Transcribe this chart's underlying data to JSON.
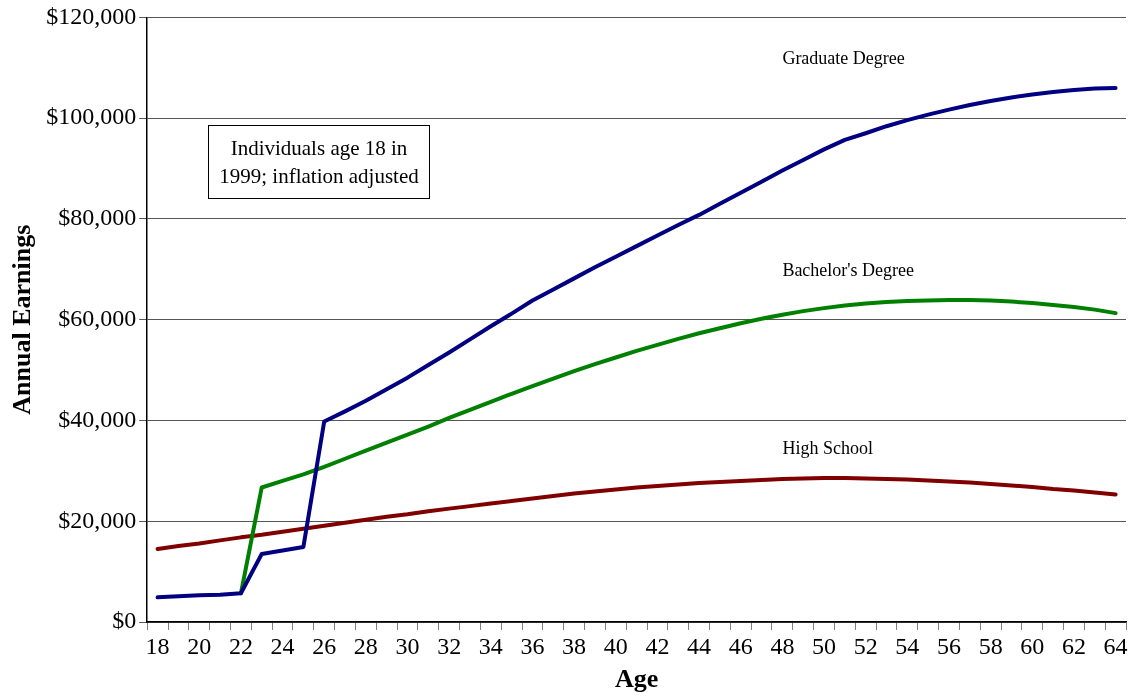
{
  "chart_data": {
    "type": "line",
    "xlabel": "Age",
    "ylabel": "Annual Earnings",
    "categories": [
      "18",
      null,
      "20",
      null,
      "22",
      null,
      "24",
      null,
      "26",
      null,
      "28",
      null,
      "30",
      null,
      "32",
      null,
      "34",
      null,
      "36",
      null,
      "38",
      null,
      "40",
      null,
      "42",
      null,
      "44",
      null,
      "46",
      null,
      "48",
      null,
      "50",
      null,
      "52",
      null,
      "54",
      null,
      "56",
      null,
      "58",
      null,
      "60",
      null,
      "62",
      null,
      "64"
    ],
    "series": [
      {
        "name": "Graduate Degree",
        "color": "#000080",
        "values": [
          4900,
          5100,
          5300,
          5400,
          5700,
          13500,
          14200,
          14900,
          39800,
          41800,
          43900,
          46200,
          48500,
          51000,
          53500,
          56100,
          58700,
          61200,
          63800,
          66000,
          68200,
          70400,
          72500,
          74600,
          76700,
          78800,
          80800,
          83000,
          85200,
          87400,
          89600,
          91700,
          93800,
          95700,
          97000,
          98400,
          99600,
          100700,
          101700,
          102600,
          103400,
          104100,
          104700,
          105200,
          105600,
          105900,
          106000
        ]
      },
      {
        "name": "Bachelor's Degree",
        "color": "#008000",
        "values": [
          null,
          null,
          null,
          null,
          5700,
          26700,
          28000,
          29300,
          30800,
          32400,
          34000,
          35600,
          37200,
          38800,
          40500,
          42100,
          43700,
          45300,
          46800,
          48300,
          49800,
          51200,
          52500,
          53800,
          55000,
          56200,
          57300,
          58300,
          59300,
          60200,
          61000,
          61700,
          62300,
          62800,
          63200,
          63500,
          63700,
          63800,
          63900,
          63900,
          63800,
          63600,
          63300,
          62900,
          62500,
          62000,
          61300
        ]
      },
      {
        "name": "High School",
        "color": "#800000",
        "values": [
          14500,
          15100,
          15600,
          16200,
          16800,
          17300,
          17900,
          18500,
          19100,
          19700,
          20300,
          20900,
          21400,
          22000,
          22500,
          23000,
          23500,
          24000,
          24500,
          25000,
          25500,
          25900,
          26300,
          26700,
          27000,
          27300,
          27600,
          27800,
          28000,
          28200,
          28400,
          28500,
          28600,
          28600,
          28500,
          28400,
          28300,
          28100,
          27900,
          27700,
          27400,
          27100,
          26800,
          26400,
          26100,
          25700,
          25300
        ]
      }
    ],
    "ylim": [
      0,
      120000
    ],
    "yticks": [
      {
        "value": 0,
        "label": "$0"
      },
      {
        "value": 20000,
        "label": "$20,000"
      },
      {
        "value": 40000,
        "label": "$40,000"
      },
      {
        "value": 60000,
        "label": "$60,000"
      },
      {
        "value": 80000,
        "label": "$80,000"
      },
      {
        "value": 100000,
        "label": "$100,000"
      },
      {
        "value": 120000,
        "label": "$120,000"
      }
    ],
    "grid": "y",
    "legend": false,
    "marker": "none",
    "line_style": "solid",
    "annotations": [
      "Individuals age 18 in 1999; inflation adjusted"
    ]
  }
}
